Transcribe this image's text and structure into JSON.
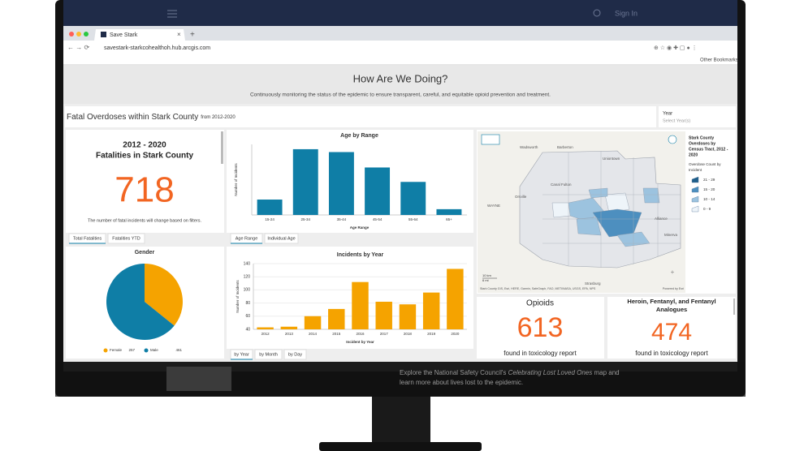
{
  "site_nav": {
    "sign_in": "Sign In"
  },
  "browser": {
    "tab_title": "Save Stark",
    "url": "savestark-starkcohealthoh.hub.arcgis.com",
    "bookmarks": "Other Bookmarks"
  },
  "header": {
    "title": "How Are We Doing?",
    "subtitle": "Continuously monitoring the status of the epidemic to ensure transparent, careful, and equitable opioid prevention and treatment."
  },
  "section": {
    "title": "Fatal Overdoses within Stark County",
    "subtitle": "from 2012-2020"
  },
  "year_filter": {
    "label": "Year",
    "placeholder": "Select Year(s)"
  },
  "fatalities_card": {
    "years": "2012 - 2020",
    "title": "Fatalities in Stark County",
    "value": 718,
    "note": "The number of fatal incidents will change based on filters.",
    "tabs": [
      "Total Fatalities",
      "Fatalities YTD"
    ]
  },
  "age_chart": {
    "type": "bar",
    "title": "Age by Range",
    "y_label": "Number of Incidents",
    "x_label": "Age Range",
    "categories": [
      "15-24",
      "25-34",
      "35-44",
      "45-54",
      "55-64",
      "65+"
    ],
    "values": [
      48,
      205,
      196,
      148,
      103,
      18
    ],
    "color": "#0f7ea6",
    "ylim": [
      0,
      220
    ],
    "tabs": [
      "Age Range",
      "Individual Age"
    ]
  },
  "year_chart": {
    "type": "bar",
    "title": "Incidents by Year",
    "y_label": "Number of Incidents",
    "x_label": "Incident by Year",
    "categories": [
      "2012",
      "2013",
      "2014",
      "2015",
      "2016",
      "2017",
      "2018",
      "2019",
      "2020"
    ],
    "values": [
      43,
      44,
      60,
      71,
      112,
      82,
      78,
      96,
      132
    ],
    "color": "#f5a300",
    "ylim": [
      40,
      140
    ],
    "yticks": [
      40,
      60,
      80,
      100,
      120,
      140
    ],
    "tabs": [
      "by Year",
      "by Month",
      "by Day"
    ]
  },
  "gender_chart": {
    "type": "pie",
    "title": "Gender",
    "categories": [
      "Female",
      "Male"
    ],
    "values": [
      257,
      461
    ],
    "colors": [
      "#f5a300",
      "#0f7ea6"
    ]
  },
  "map": {
    "title_lines": [
      "Stark County",
      "Overdoses by",
      "Census Tract, 2012 -",
      "2020"
    ],
    "legend_title_lines": [
      "Overdose Count by",
      "Incident"
    ],
    "legend": [
      "21 - 29",
      "15 - 20",
      "10 - 14",
      "0 - 9"
    ],
    "legend_colors": [
      "#1f5f8b",
      "#4d8fbf",
      "#9cc3df",
      "#eef4f9"
    ],
    "places": [
      "Wadsworth",
      "Barberton",
      "Uniontown",
      "Canal Fulton",
      "Orrville",
      "WAYNE",
      "Alliance",
      "Minerva",
      "Strasburg"
    ],
    "scale": [
      "10 km",
      "6 mi"
    ],
    "attribution": "Stark County GIS, Esri, HERE, Garmin, SafeGraph, FAO, METI/NASA, USGS, EPA, NPS",
    "powered": "Powered by Esri"
  },
  "opioids_card": {
    "title": "Opioids",
    "value": 613,
    "note": "found in toxicology report"
  },
  "heroin_card": {
    "title_lines": [
      "Heroin, Fentanyl, and Fentanyl",
      "Analogues"
    ],
    "value": 474,
    "note": "found in toxicology report"
  },
  "footer": {
    "before": "Explore the National Safety Council's ",
    "italic": "Celebrating Lost Loved Ones",
    "after": " map and",
    "line2": "learn more about lives lost to the epidemic."
  }
}
